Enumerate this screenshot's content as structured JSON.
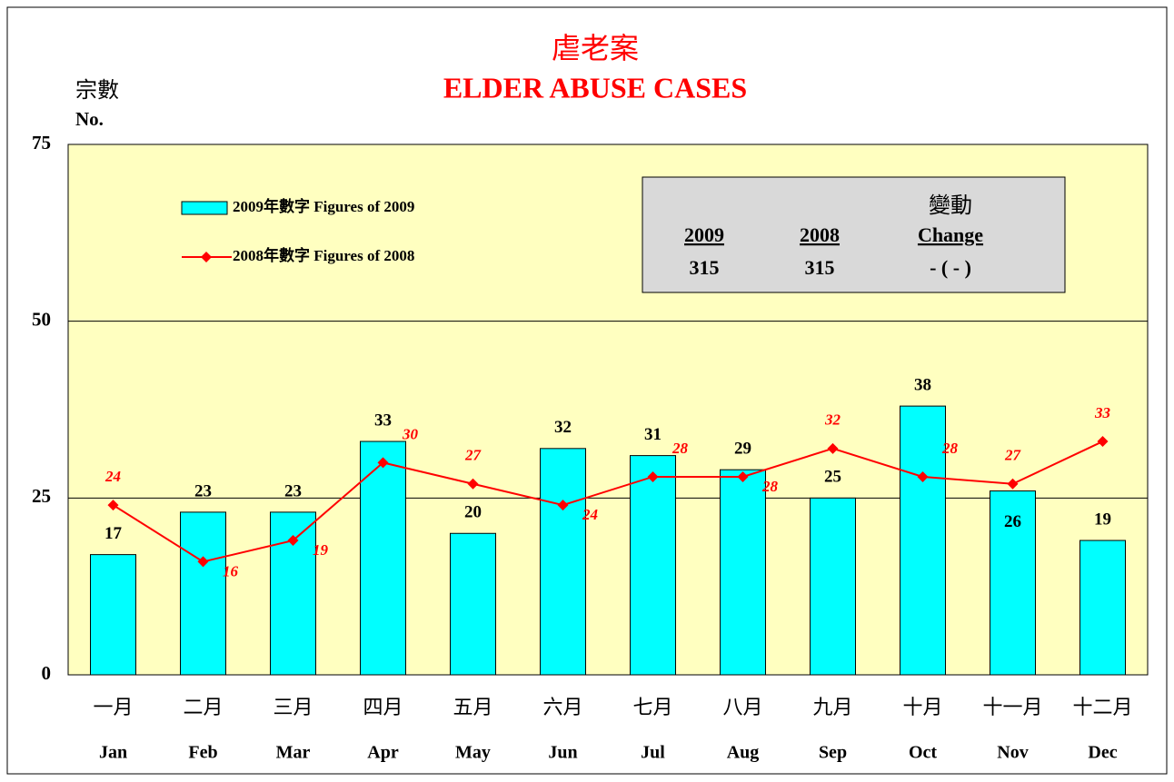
{
  "chart_data": {
    "type": "bar",
    "title": "虐老案",
    "subtitle": "ELDER ABUSE CASES",
    "y_label": "宗數",
    "y_label_en": "No.",
    "categories": [
      "Jan",
      "Feb",
      "Mar",
      "Apr",
      "May",
      "Jun",
      "Jul",
      "Aug",
      "Sep",
      "Oct",
      "Nov",
      "Dec"
    ],
    "categories_zh": [
      "一月",
      "二月",
      "三月",
      "四月",
      "五月",
      "六月",
      "七月",
      "八月",
      "九月",
      "十月",
      "十一月",
      "十二月"
    ],
    "series": [
      {
        "name": "2009年數字 Figures of 2009",
        "type": "bar",
        "color": "#00ffff",
        "values": [
          17,
          23,
          23,
          33,
          20,
          32,
          31,
          29,
          25,
          38,
          26,
          19
        ]
      },
      {
        "name": "2008年數字 Figures of 2008",
        "type": "line",
        "color": "#ff0000",
        "values": [
          24,
          16,
          19,
          30,
          27,
          24,
          28,
          28,
          32,
          28,
          27,
          33
        ]
      }
    ],
    "ylim": [
      0,
      75
    ],
    "yticks": [
      0,
      25,
      50,
      75
    ],
    "grid": true,
    "summary_box": {
      "change_title": "變動",
      "headers": [
        "2009",
        "2008",
        "Change"
      ],
      "values": [
        "315",
        "315",
        "- ( - )"
      ]
    }
  }
}
